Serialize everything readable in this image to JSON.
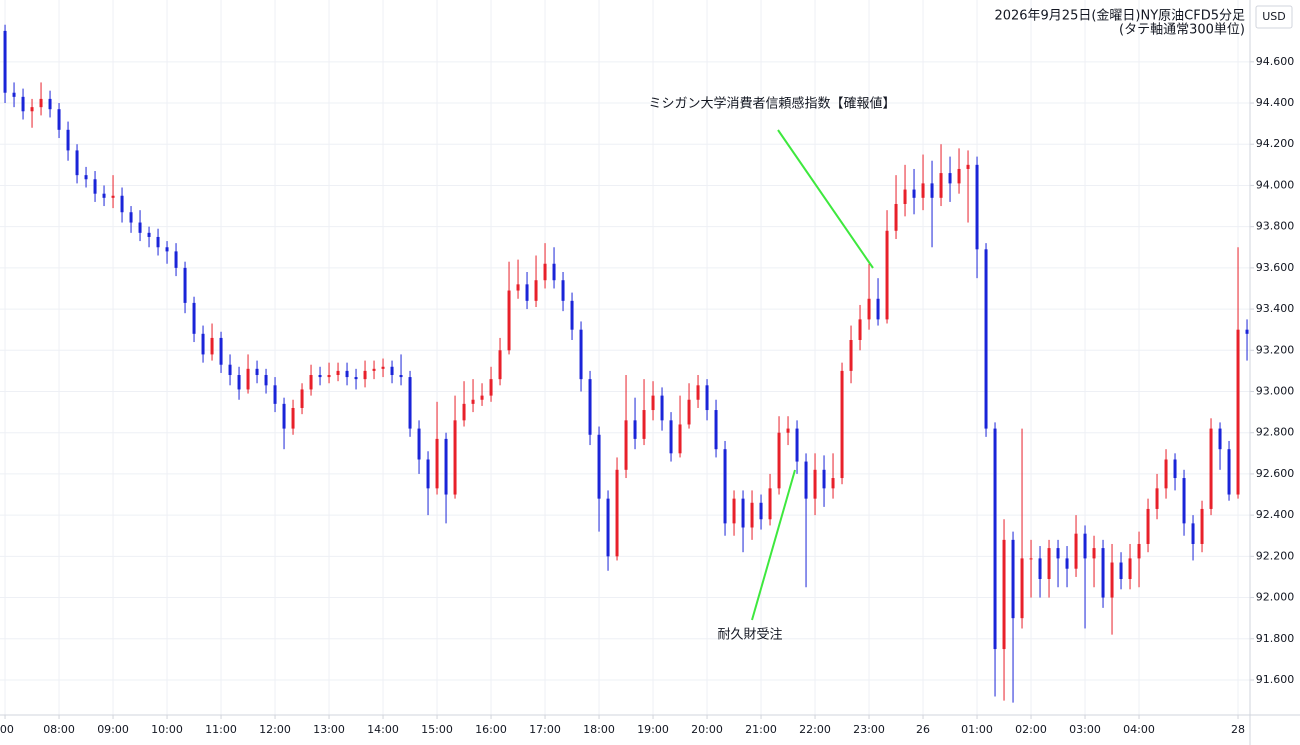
{
  "chart_data": {
    "type": "candlestick",
    "title": "2026年9月25日(金曜日)NY原油CFD5分足",
    "subtitle": "(タテ軸通常300単位)",
    "currency": "USD",
    "up_color": "#e8202a",
    "down_color": "#1a24d8",
    "grid": true,
    "ylim": [
      91.43,
      94.9
    ],
    "yticks": [
      {
        "value": 91.6,
        "label": "91.600"
      },
      {
        "value": 91.8,
        "label": "91.800"
      },
      {
        "value": 92.0,
        "label": "92.000"
      },
      {
        "value": 92.2,
        "label": "92.200"
      },
      {
        "value": 92.4,
        "label": "92.400"
      },
      {
        "value": 92.6,
        "label": "92.600"
      },
      {
        "value": 92.8,
        "label": "92.800"
      },
      {
        "value": 93.0,
        "label": "93.000"
      },
      {
        "value": 93.2,
        "label": "93.200"
      },
      {
        "value": 93.4,
        "label": "93.400"
      },
      {
        "value": 93.6,
        "label": "93.600"
      },
      {
        "value": 93.8,
        "label": "93.800"
      },
      {
        "value": 94.0,
        "label": "94.000"
      },
      {
        "value": 94.2,
        "label": "94.200"
      },
      {
        "value": 94.4,
        "label": "94.400"
      },
      {
        "value": 94.6,
        "label": "94.600"
      }
    ],
    "xlim": [
      -0.56,
      138.33
    ],
    "xticks": [
      {
        "value": 0,
        "label": ":00"
      },
      {
        "value": 6,
        "label": "08:00"
      },
      {
        "value": 12,
        "label": "09:00"
      },
      {
        "value": 18,
        "label": "10:00"
      },
      {
        "value": 24,
        "label": "11:00"
      },
      {
        "value": 30,
        "label": "12:00"
      },
      {
        "value": 36,
        "label": "13:00"
      },
      {
        "value": 42,
        "label": "14:00"
      },
      {
        "value": 48,
        "label": "15:00"
      },
      {
        "value": 54,
        "label": "16:00"
      },
      {
        "value": 60,
        "label": "17:00"
      },
      {
        "value": 66,
        "label": "18:00"
      },
      {
        "value": 72,
        "label": "19:00"
      },
      {
        "value": 78,
        "label": "20:00"
      },
      {
        "value": 84,
        "label": "21:00"
      },
      {
        "value": 90,
        "label": "22:00"
      },
      {
        "value": 96,
        "label": "23:00"
      },
      {
        "value": 102,
        "label": "26"
      },
      {
        "value": 108,
        "label": "01:00"
      },
      {
        "value": 114,
        "label": "02:00"
      },
      {
        "value": 120,
        "label": "03:00"
      },
      {
        "value": 126,
        "label": "04:00"
      },
      {
        "value": 137,
        "label": "28"
      }
    ],
    "annotations": [
      {
        "text": "ミシガン大学消費者信頼感指数【確報値】"
      },
      {
        "text": "耐久財受注"
      }
    ],
    "open": [
      94.75,
      94.45,
      94.43,
      94.36,
      94.38,
      94.42,
      94.37,
      94.27,
      94.17,
      94.05,
      94.03,
      93.96,
      93.94,
      93.95,
      93.87,
      93.82,
      93.77,
      93.75,
      93.7,
      93.68,
      93.6,
      93.43,
      93.28,
      93.18,
      93.26,
      93.13,
      93.08,
      93.01,
      93.11,
      93.08,
      93.03,
      92.94,
      92.82,
      92.92,
      93.01,
      93.08,
      93.07,
      93.08,
      93.1,
      93.07,
      93.06,
      93.1,
      93.11,
      93.12,
      93.08,
      93.07,
      92.82,
      92.67,
      92.53,
      92.77,
      92.5,
      92.86,
      92.94,
      92.96,
      92.98,
      93.06,
      93.2,
      93.49,
      93.52,
      93.44,
      93.54,
      93.62,
      93.54,
      93.44,
      93.3,
      93.06,
      92.79,
      92.48,
      92.2,
      92.62,
      92.86,
      92.77,
      92.91,
      92.98,
      92.86,
      92.7,
      92.84,
      92.96,
      93.03,
      92.91,
      92.72,
      92.36,
      92.48,
      92.34,
      92.46,
      92.38,
      92.53,
      92.8,
      92.82,
      92.66,
      92.48,
      92.62,
      92.53,
      92.58,
      93.1,
      93.25,
      93.35,
      93.45,
      93.35,
      93.78,
      93.91,
      93.98,
      93.94,
      94.01,
      93.94,
      94.06,
      94.01,
      94.08,
      94.1,
      93.69,
      92.82,
      91.75,
      92.28,
      91.9,
      92.19,
      92.19,
      92.09,
      92.24,
      92.19,
      92.14,
      92.31,
      92.19,
      92.24,
      92.0,
      92.17,
      92.09,
      92.19,
      92.26,
      92.43,
      92.53,
      92.67,
      92.58,
      92.36,
      92.26,
      92.43,
      92.82,
      92.72,
      92.5,
      93.3
    ],
    "high": [
      94.78,
      94.5,
      94.47,
      94.42,
      94.5,
      94.46,
      94.4,
      94.31,
      94.2,
      94.09,
      94.07,
      94.0,
      94.05,
      93.99,
      93.9,
      93.88,
      93.8,
      93.79,
      93.73,
      93.72,
      93.63,
      93.46,
      93.32,
      93.33,
      93.29,
      93.18,
      93.12,
      93.18,
      93.15,
      93.11,
      93.07,
      92.97,
      92.96,
      93.04,
      93.13,
      93.12,
      93.14,
      93.14,
      93.14,
      93.11,
      93.15,
      93.15,
      93.16,
      93.15,
      93.18,
      93.1,
      92.86,
      92.71,
      92.95,
      92.8,
      92.98,
      93.05,
      93.06,
      93.04,
      93.12,
      93.26,
      93.63,
      93.64,
      93.58,
      93.66,
      93.72,
      93.7,
      93.58,
      93.48,
      93.34,
      93.1,
      92.83,
      92.52,
      92.68,
      93.08,
      92.97,
      93.06,
      93.05,
      93.02,
      92.9,
      92.98,
      93.04,
      93.08,
      93.06,
      92.96,
      92.76,
      92.52,
      92.52,
      92.52,
      92.5,
      92.6,
      92.88,
      92.88,
      92.86,
      92.7,
      92.7,
      92.69,
      92.7,
      93.14,
      93.32,
      93.42,
      93.62,
      93.55,
      93.88,
      94.05,
      94.1,
      94.08,
      94.15,
      94.12,
      94.2,
      94.14,
      94.18,
      94.17,
      94.14,
      93.72,
      92.85,
      92.38,
      92.32,
      92.82,
      92.28,
      92.25,
      92.28,
      92.28,
      92.25,
      92.4,
      92.35,
      92.3,
      92.28,
      92.26,
      92.22,
      92.26,
      92.32,
      92.48,
      92.6,
      92.72,
      92.7,
      92.62,
      92.4,
      92.47,
      92.87,
      92.85,
      92.76,
      93.7,
      93.35
    ],
    "low": [
      94.4,
      94.38,
      94.32,
      94.28,
      94.34,
      94.33,
      94.23,
      94.12,
      94.01,
      93.99,
      93.92,
      93.9,
      93.89,
      93.82,
      93.77,
      93.73,
      93.7,
      93.66,
      93.62,
      93.56,
      93.38,
      93.24,
      93.14,
      93.15,
      93.09,
      93.03,
      92.96,
      92.99,
      93.04,
      92.99,
      92.9,
      92.72,
      92.79,
      92.89,
      92.98,
      93.03,
      93.04,
      93.05,
      93.03,
      93.01,
      93.02,
      93.06,
      93.07,
      93.04,
      93.03,
      92.78,
      92.6,
      92.4,
      92.5,
      92.36,
      92.48,
      92.83,
      92.9,
      92.93,
      92.95,
      93.03,
      93.18,
      93.45,
      93.4,
      93.41,
      93.5,
      93.5,
      93.39,
      93.25,
      93.0,
      92.74,
      92.32,
      92.13,
      92.18,
      92.58,
      92.72,
      92.74,
      92.86,
      92.81,
      92.66,
      92.68,
      92.82,
      92.92,
      92.86,
      92.68,
      92.3,
      92.3,
      92.22,
      92.28,
      92.33,
      92.35,
      92.5,
      92.74,
      92.6,
      92.05,
      92.4,
      92.44,
      92.48,
      92.55,
      93.04,
      93.2,
      93.3,
      93.32,
      93.33,
      93.74,
      93.85,
      93.86,
      93.88,
      93.7,
      93.9,
      93.92,
      93.96,
      93.82,
      93.55,
      92.78,
      91.52,
      91.5,
      91.49,
      91.85,
      92.0,
      92.0,
      92.0,
      92.05,
      92.05,
      92.1,
      91.85,
      92.05,
      91.95,
      91.82,
      92.04,
      92.04,
      92.05,
      92.22,
      92.38,
      92.48,
      92.52,
      92.3,
      92.18,
      92.22,
      92.4,
      92.62,
      92.47,
      92.48,
      93.15
    ],
    "close": [
      94.45,
      94.43,
      94.36,
      94.38,
      94.42,
      94.37,
      94.27,
      94.17,
      94.05,
      94.03,
      93.96,
      93.94,
      93.95,
      93.87,
      93.82,
      93.77,
      93.75,
      93.7,
      93.68,
      93.6,
      93.43,
      93.28,
      93.18,
      93.26,
      93.13,
      93.08,
      93.01,
      93.11,
      93.08,
      93.03,
      92.94,
      92.82,
      92.92,
      93.01,
      93.08,
      93.07,
      93.08,
      93.1,
      93.07,
      93.06,
      93.1,
      93.11,
      93.12,
      93.08,
      93.07,
      92.82,
      92.67,
      92.53,
      92.77,
      92.5,
      92.86,
      92.94,
      92.96,
      92.98,
      93.06,
      93.2,
      93.49,
      93.52,
      93.44,
      93.54,
      93.62,
      93.54,
      93.44,
      93.3,
      93.06,
      92.79,
      92.48,
      92.2,
      92.62,
      92.86,
      92.77,
      92.91,
      92.98,
      92.86,
      92.7,
      92.84,
      92.96,
      93.03,
      92.91,
      92.72,
      92.36,
      92.48,
      92.34,
      92.46,
      92.38,
      92.53,
      92.8,
      92.82,
      92.66,
      92.48,
      92.62,
      92.53,
      92.58,
      93.1,
      93.25,
      93.35,
      93.45,
      93.35,
      93.78,
      93.91,
      93.98,
      93.94,
      94.01,
      93.94,
      94.06,
      94.01,
      94.08,
      94.1,
      93.69,
      92.82,
      91.75,
      92.28,
      91.9,
      92.19,
      92.19,
      92.09,
      92.24,
      92.19,
      92.14,
      92.31,
      92.19,
      92.24,
      92.0,
      92.17,
      92.09,
      92.19,
      92.26,
      92.43,
      92.53,
      92.67,
      92.58,
      92.36,
      92.26,
      92.43,
      92.82,
      92.72,
      92.5,
      93.3,
      93.28
    ]
  }
}
